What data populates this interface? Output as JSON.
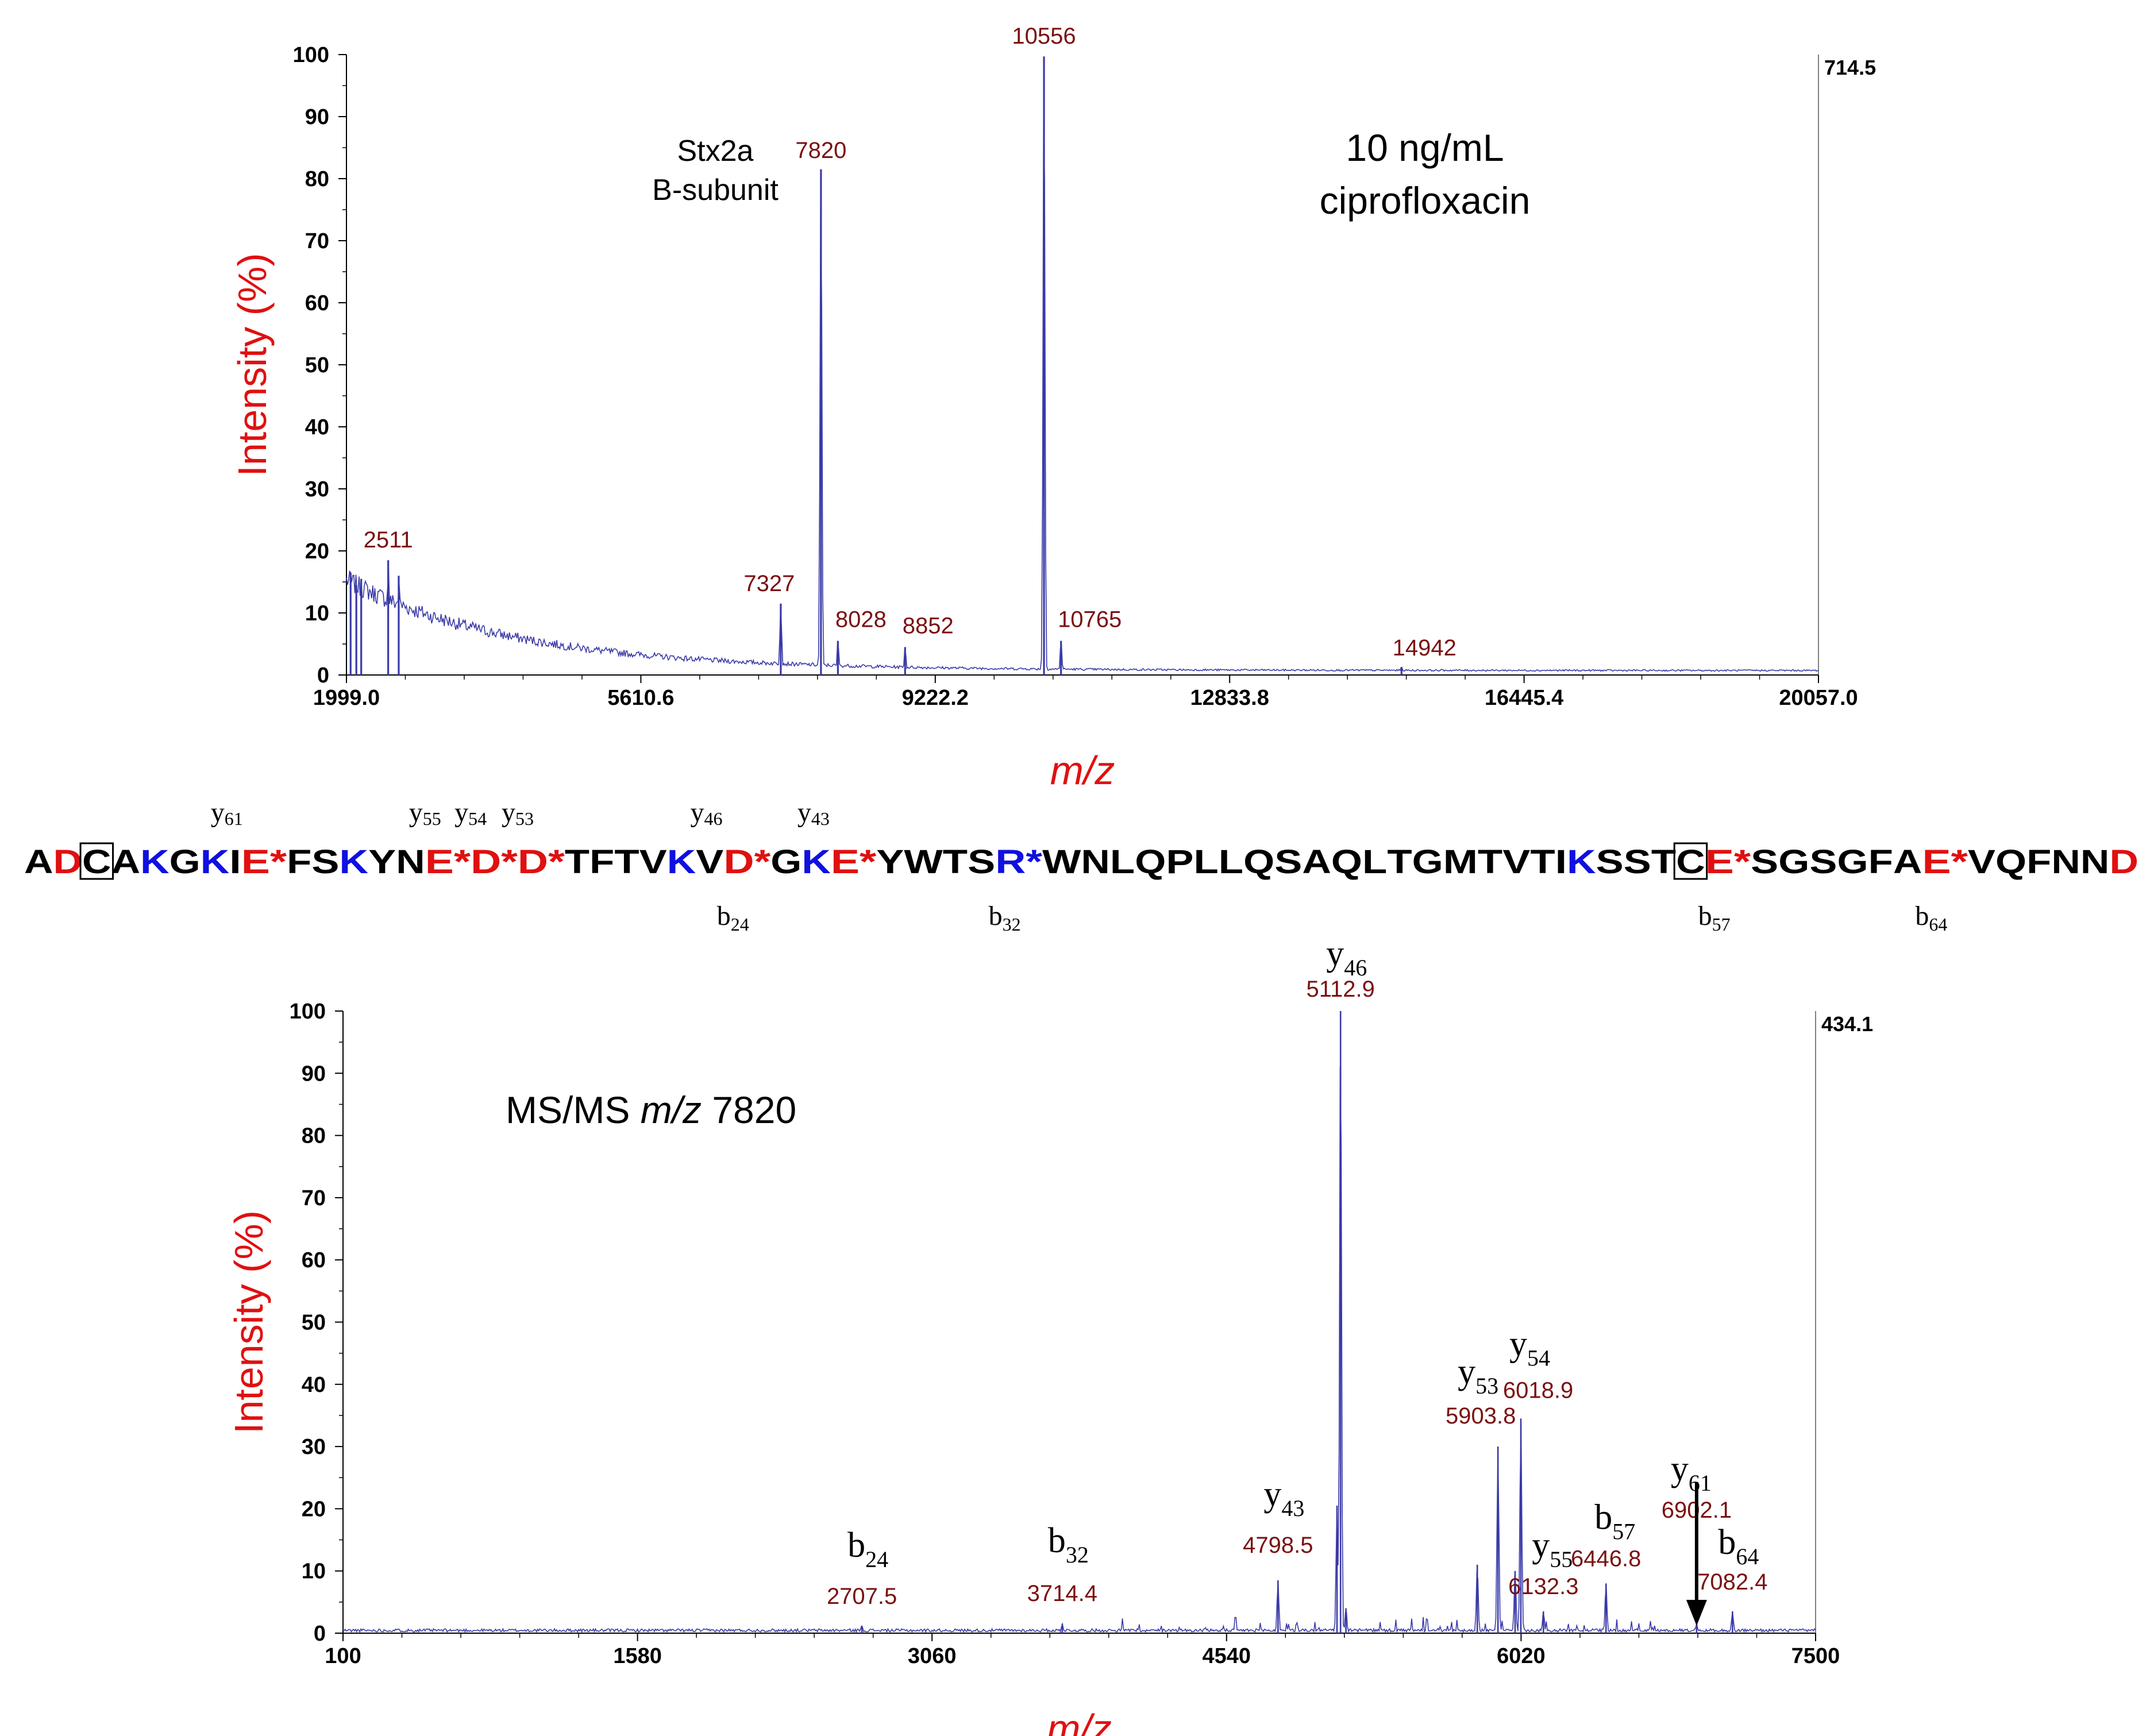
{
  "sequence": {
    "residues": [
      "A",
      "D",
      "C",
      "A",
      "K",
      "G",
      "K",
      "I",
      "E*",
      "F",
      "S",
      "K",
      "Y",
      "N",
      "E*",
      "D*",
      "D*",
      "T",
      "F",
      "T",
      "V",
      "K",
      "V",
      "D*",
      "G",
      "K",
      "E*",
      "Y",
      "W",
      "T",
      "S",
      "R*",
      "W",
      "N",
      "L",
      "Q",
      "P",
      "L",
      "L",
      "Q",
      "S",
      "A",
      "Q",
      "L",
      "T",
      "G",
      "M",
      "T",
      "V",
      "T",
      "I",
      "K",
      "S",
      "S",
      "T",
      "C",
      "E*",
      "S",
      "G",
      "S",
      "G",
      "F",
      "A",
      "E*",
      "V",
      "Q",
      "F",
      "N",
      "N",
      "D"
    ],
    "red_positions": [
      1,
      8,
      14,
      15,
      16,
      23,
      26,
      56,
      63,
      69
    ],
    "blue_positions": [
      4,
      6,
      11,
      21,
      25,
      31,
      51
    ],
    "boxed_positions": [
      2,
      55
    ],
    "top_labels": [
      {
        "ion": "y",
        "num": "61",
        "after": 7
      },
      {
        "ion": "y",
        "num": "55",
        "after": 13
      },
      {
        "ion": "y",
        "num": "54",
        "after": 14
      },
      {
        "ion": "y",
        "num": "53",
        "after": 15
      },
      {
        "ion": "y",
        "num": "46",
        "after": 22
      },
      {
        "ion": "y",
        "num": "43",
        "after": 25
      }
    ],
    "bottom_labels": [
      {
        "ion": "b",
        "num": "24",
        "after": 23
      },
      {
        "ion": "b",
        "num": "32",
        "after": 31
      },
      {
        "ion": "b",
        "num": "57",
        "after": 56
      },
      {
        "ion": "b",
        "num": "64",
        "after": 63
      }
    ]
  },
  "chart_data": [
    {
      "type": "line",
      "title": "",
      "xlabel": "m/z",
      "ylabel": "Intensity (%)",
      "xlim": [
        1999.0,
        20057.0
      ],
      "ylim": [
        0,
        100
      ],
      "x_ticks": [
        "1999.0",
        "5610.6",
        "9222.2",
        "12833.8",
        "16445.4",
        "20057.0"
      ],
      "y_ticks": [
        "0",
        "10",
        "20",
        "30",
        "40",
        "50",
        "60",
        "70",
        "80",
        "90",
        "100"
      ],
      "max_intensity": "714.5",
      "annotations": [
        "Stx2a",
        "B-subunit",
        "10 ng/mL",
        "ciprofloxacin"
      ],
      "peaks": [
        {
          "x": 2050,
          "y": 16.5,
          "label": ""
        },
        {
          "x": 2120,
          "y": 14.5,
          "label": ""
        },
        {
          "x": 2180,
          "y": 15.5,
          "label": ""
        },
        {
          "x": 2511,
          "y": 18.5,
          "label": "2511"
        },
        {
          "x": 2640,
          "y": 16,
          "label": ""
        },
        {
          "x": 7327,
          "y": 11.5,
          "label": "7327"
        },
        {
          "x": 7820,
          "y": 81.5,
          "label": "7820"
        },
        {
          "x": 8028,
          "y": 5.5,
          "label": "8028"
        },
        {
          "x": 8852,
          "y": 4.5,
          "label": "8852"
        },
        {
          "x": 10556,
          "y": 99.7,
          "label": "10556"
        },
        {
          "x": 10765,
          "y": 5.5,
          "label": "10765"
        },
        {
          "x": 14942,
          "y": 1.3,
          "label": "14942"
        }
      ]
    },
    {
      "type": "line",
      "title": "MS/MS m/z 7820",
      "xlabel": "m/z",
      "ylabel": "Intensity (%)",
      "xlim": [
        100,
        7500
      ],
      "ylim": [
        0,
        100
      ],
      "x_ticks": [
        "100",
        "1580",
        "3060",
        "4540",
        "6020",
        "7500"
      ],
      "y_ticks": [
        "0",
        "10",
        "20",
        "30",
        "40",
        "50",
        "60",
        "70",
        "80",
        "90",
        "100"
      ],
      "max_intensity": "434.1",
      "title_parts": [
        "MS/MS ",
        "m/z",
        " 7820"
      ],
      "peaks": [
        {
          "x": 2707.5,
          "y": 1.2,
          "label": "2707.5",
          "ion": "b",
          "num": "24"
        },
        {
          "x": 3714.4,
          "y": 1.5,
          "label": "3714.4",
          "ion": "b",
          "num": "32"
        },
        {
          "x": 4798.5,
          "y": 8.5,
          "label": "4798.5",
          "ion": "y",
          "num": "43"
        },
        {
          "x": 5095,
          "y": 20.5,
          "label": ""
        },
        {
          "x": 5112.9,
          "y": 100,
          "label": "5112.9",
          "ion": "y",
          "num": "46"
        },
        {
          "x": 5140,
          "y": 4,
          "label": ""
        },
        {
          "x": 5800,
          "y": 11,
          "label": ""
        },
        {
          "x": 5903.8,
          "y": 30,
          "label": "5903.8",
          "ion": "y",
          "num": "53"
        },
        {
          "x": 5990,
          "y": 10,
          "label": ""
        },
        {
          "x": 6018.9,
          "y": 34.5,
          "label": "6018.9",
          "ion": "y",
          "num": "54"
        },
        {
          "x": 6132.3,
          "y": 3.5,
          "label": "6132.3",
          "ion": "y",
          "num": "55"
        },
        {
          "x": 6446.8,
          "y": 8,
          "label": "6446.8",
          "ion": "b",
          "num": "57"
        },
        {
          "x": 6902.1,
          "y": 1.5,
          "label": "6902.1",
          "ion": "y",
          "num": "61"
        },
        {
          "x": 7082.4,
          "y": 3.5,
          "label": "7082.4",
          "ion": "b",
          "num": "64"
        }
      ]
    }
  ]
}
